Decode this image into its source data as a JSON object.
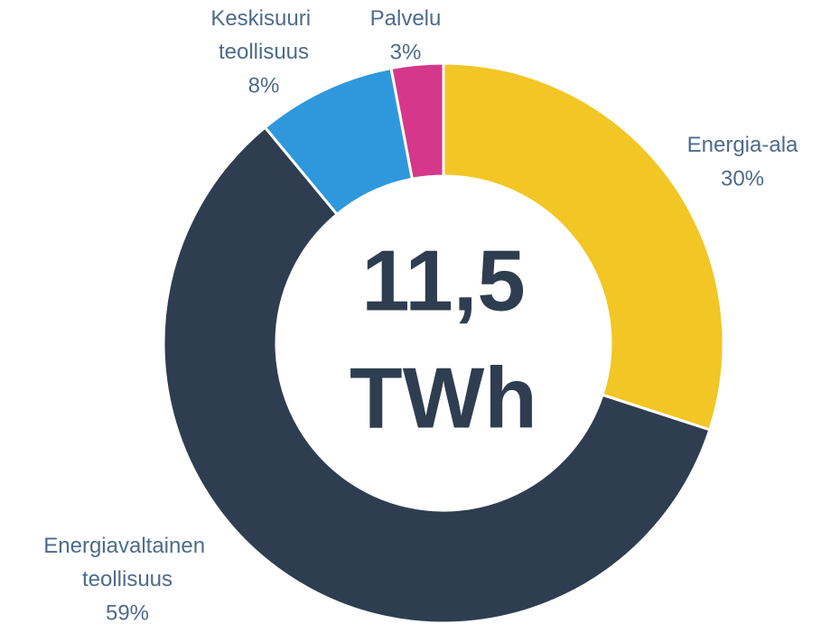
{
  "chart_data": {
    "type": "pie",
    "categories": [
      "Energia-ala",
      "Energiavaltainen teollisuus",
      "Keskisuuri teollisuus",
      "Palvelu"
    ],
    "values": [
      30,
      59,
      8,
      3
    ],
    "value_labels": [
      "30%",
      "59%",
      "8%",
      "3%"
    ],
    "colors": [
      "#f2c624",
      "#2e3e50",
      "#2f98dc",
      "#d5388a"
    ],
    "center_text": [
      "11,5",
      "TWh"
    ]
  }
}
